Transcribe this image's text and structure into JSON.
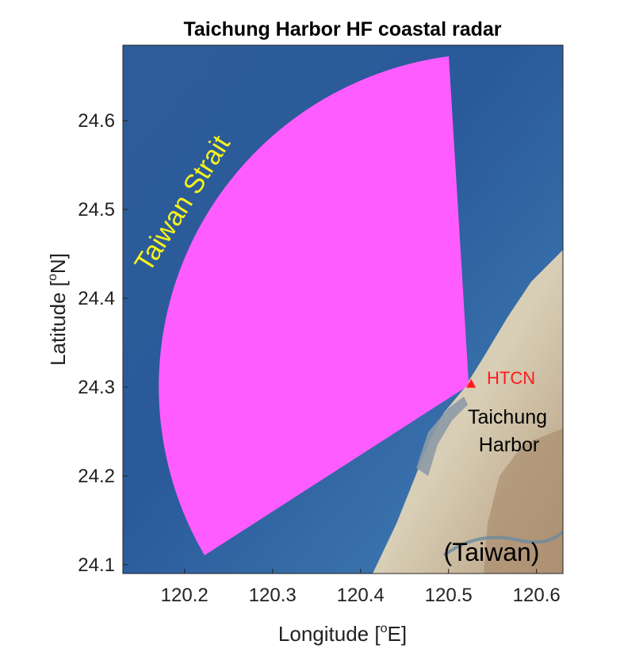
{
  "map": {
    "title": "Taichung Harbor HF coastal radar",
    "xlabel_prefix": "Longitude [",
    "xlabel_sup": "o",
    "xlabel_suffix": "E]",
    "ylabel_prefix": "Latitude [",
    "ylabel_sup": "o",
    "ylabel_suffix": "N]",
    "xlim": [
      120.13,
      120.63
    ],
    "ylim": [
      24.09,
      24.685
    ],
    "xticks": [
      "120.2",
      "120.3",
      "120.4",
      "120.5",
      "120.6"
    ],
    "xtick_values": [
      120.2,
      120.3,
      120.4,
      120.5,
      120.6
    ],
    "yticks": [
      "24.1",
      "24.2",
      "24.3",
      "24.4",
      "24.5",
      "24.6"
    ],
    "ytick_values": [
      24.1,
      24.2,
      24.3,
      24.4,
      24.5,
      24.6
    ],
    "labels": {
      "strait": "Taiwan Strait",
      "station": "HTCN",
      "harbor_line1": "Taichung",
      "harbor_line2": "Harbor",
      "land": "(Taiwan)"
    },
    "radar": {
      "station_lon": 120.523,
      "station_lat": 24.302,
      "coverage_color": "#ff5cff",
      "station_color": "#ff1a1a"
    },
    "colors": {
      "sea": "#2c5f9e",
      "land": "#cfc6aa"
    }
  }
}
